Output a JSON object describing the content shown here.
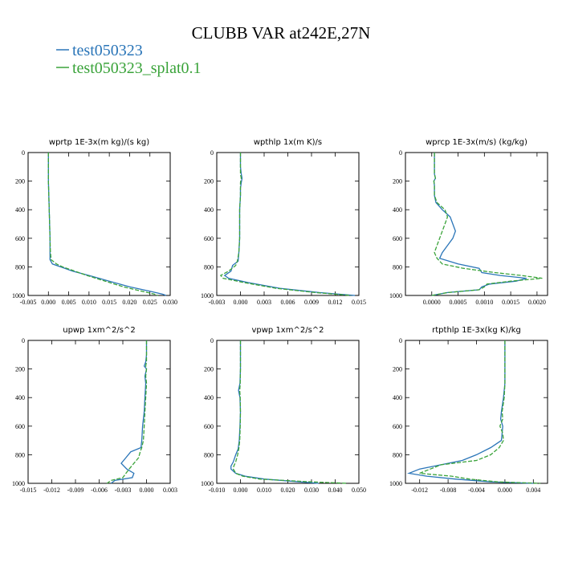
{
  "title": "CLUBB VAR at242E,27N",
  "legend": [
    {
      "label": "test050323",
      "color": "#2a75b8"
    },
    {
      "label": "test050323_splat0.1",
      "color": "#3aa33a"
    }
  ],
  "chart_data": [
    {
      "type": "line",
      "title": "wprtp  1E-3x(m kg)/(s kg)",
      "xlim": [
        -0.005,
        0.03
      ],
      "ylim": [
        1000,
        0
      ],
      "xticks": [
        "-0.005",
        "0.000",
        "0.005",
        "0.010",
        "0.015",
        "0.020",
        "0.025",
        "0.030"
      ],
      "xtick_values": [
        -0.005,
        0.0,
        0.005,
        0.01,
        0.015,
        0.02,
        0.025,
        0.03
      ],
      "yticks": [
        "0",
        "200",
        "400",
        "600",
        "800",
        "1000"
      ],
      "ytick_values": [
        0,
        200,
        400,
        600,
        800,
        1000
      ],
      "y": [
        0,
        100,
        200,
        300,
        400,
        500,
        600,
        700,
        750,
        780,
        800,
        830,
        860,
        900,
        940,
        970,
        990,
        1000
      ],
      "series": [
        {
          "name": "test050323",
          "values": [
            0,
            0,
            0,
            0.0001,
            0.0002,
            0.0003,
            0.0004,
            0.0004,
            0.0004,
            0.001,
            0.003,
            0.006,
            0.01,
            0.015,
            0.02,
            0.025,
            0.028,
            0.029
          ]
        },
        {
          "name": "test050323_splat0.1",
          "values": [
            0,
            0,
            0,
            0.0001,
            0.0002,
            0.0003,
            0.0004,
            0.0005,
            0.0007,
            0.002,
            0.0035,
            0.0065,
            0.0095,
            0.014,
            0.0185,
            0.023,
            0.026,
            0.027
          ]
        }
      ]
    },
    {
      "type": "line",
      "title": "wpthlp  1x(m K)/s",
      "xlim": [
        -0.003,
        0.015
      ],
      "ylim": [
        1000,
        0
      ],
      "xticks": [
        "-0.003",
        "0.000",
        "0.003",
        "0.006",
        "0.009",
        "0.012",
        "0.015"
      ],
      "xtick_values": [
        -0.003,
        0.0,
        0.003,
        0.006,
        0.009,
        0.012,
        0.015
      ],
      "yticks": [
        "0",
        "200",
        "400",
        "600",
        "800",
        "1000"
      ],
      "ytick_values": [
        0,
        200,
        400,
        600,
        800,
        1000
      ],
      "y": [
        0,
        100,
        150,
        180,
        210,
        250,
        300,
        400,
        500,
        600,
        700,
        760,
        790,
        830,
        860,
        880,
        910,
        950,
        980,
        1000
      ],
      "series": [
        {
          "name": "test050323",
          "values": [
            0,
            0,
            0.0001,
            0.0002,
            0.0001,
            0,
            0,
            -0.0001,
            -0.0001,
            -0.0001,
            -0.0002,
            -0.0003,
            -0.001,
            -0.0012,
            -0.002,
            -0.0015,
            0.001,
            0.005,
            0.01,
            0.0145
          ]
        },
        {
          "name": "test050323_splat0.1",
          "values": [
            0,
            0,
            0,
            0.0001,
            0,
            0,
            0,
            -0.0001,
            -0.0001,
            -0.0001,
            -0.0002,
            -0.0004,
            -0.0006,
            -0.0015,
            -0.0025,
            -0.0022,
            0.0005,
            0.0045,
            0.0095,
            0.014
          ]
        }
      ]
    },
    {
      "type": "line",
      "title": "wprcp  1E-3x(m/s) (kg/kg)",
      "xlim": [
        -0.0005,
        0.0022
      ],
      "ylim": [
        1000,
        0
      ],
      "xticks": [
        "0.0000",
        "0.0005",
        "0.0010",
        "0.0015",
        "0.0020"
      ],
      "xtick_values": [
        0.0,
        0.0005,
        0.001,
        0.0015,
        0.002
      ],
      "yticks": [
        "0",
        "200",
        "400",
        "600",
        "800",
        "1000"
      ],
      "ytick_values": [
        0,
        200,
        400,
        600,
        800,
        1000
      ],
      "y": [
        0,
        100,
        150,
        180,
        200,
        230,
        300,
        350,
        400,
        450,
        500,
        550,
        600,
        650,
        700,
        740,
        780,
        810,
        840,
        860,
        880,
        900,
        920,
        940,
        960,
        980,
        1000
      ],
      "series": [
        {
          "name": "test050323",
          "values": [
            5e-05,
            5e-05,
            5e-05,
            7e-05,
            4e-05,
            5e-05,
            5e-05,
            8e-05,
            0.0002,
            0.00035,
            0.0004,
            0.00045,
            0.0004,
            0.0003,
            0.0002,
            0.00015,
            0.0005,
            0.0009,
            0.00095,
            0.0013,
            0.0018,
            0.0016,
            0.0011,
            0.00095,
            0.0009,
            0.0003,
            0.0
          ]
        },
        {
          "name": "test050323_splat0.1",
          "values": [
            5e-05,
            5e-05,
            5e-05,
            7e-05,
            4e-05,
            5e-05,
            5e-05,
            0.0001,
            0.00025,
            0.0003,
            0.00025,
            0.0002,
            0.00015,
            0.0001,
            5e-05,
            0.0001,
            0.0002,
            0.0006,
            0.0012,
            0.0017,
            0.0021,
            0.0015,
            0.00105,
            0.001,
            0.0009,
            0.0003,
            0.0
          ]
        }
      ]
    },
    {
      "type": "line",
      "title": "upwp  1xm^2/s^2",
      "xlim": [
        -0.015,
        0.003
      ],
      "ylim": [
        1000,
        0
      ],
      "xticks": [
        "-0.015",
        "-0.012",
        "-0.009",
        "-0.006",
        "-0.003",
        "0.000",
        "0.003"
      ],
      "xtick_values": [
        -0.015,
        -0.012,
        -0.009,
        -0.006,
        -0.003,
        0.0,
        0.003
      ],
      "yticks": [
        "0",
        "200",
        "400",
        "600",
        "800",
        "1000"
      ],
      "ytick_values": [
        0,
        200,
        400,
        600,
        800,
        1000
      ],
      "y": [
        0,
        100,
        150,
        180,
        200,
        250,
        300,
        400,
        500,
        600,
        700,
        750,
        780,
        820,
        860,
        900,
        930,
        960,
        980,
        1000
      ],
      "series": [
        {
          "name": "test050323",
          "values": [
            0,
            0,
            -0.0001,
            -0.0003,
            0,
            -0.0002,
            -0.0001,
            -0.0002,
            -0.0003,
            -0.0005,
            -0.0006,
            -0.0007,
            -0.002,
            -0.0026,
            -0.0032,
            -0.0025,
            -0.0016,
            -0.0018,
            -0.004,
            -0.0045
          ]
        },
        {
          "name": "test050323_splat0.1",
          "values": [
            0,
            0,
            0,
            -0.0001,
            0,
            -0.0001,
            0,
            -0.0001,
            -0.0002,
            -0.0003,
            -0.0004,
            -0.0006,
            -0.0008,
            -0.001,
            -0.0016,
            -0.0022,
            -0.0026,
            -0.003,
            -0.0045,
            -0.005
          ]
        }
      ]
    },
    {
      "type": "line",
      "title": "vpwp  1xm^2/s^2",
      "xlim": [
        -0.01,
        0.05
      ],
      "ylim": [
        1000,
        0
      ],
      "xticks": [
        "-0.010",
        "0.000",
        "0.010",
        "0.020",
        "0.030",
        "0.040",
        "0.050"
      ],
      "xtick_values": [
        -0.01,
        0.0,
        0.01,
        0.02,
        0.03,
        0.04,
        0.05
      ],
      "yticks": [
        "0",
        "200",
        "400",
        "600",
        "800",
        "1000"
      ],
      "ytick_values": [
        0,
        200,
        400,
        600,
        800,
        1000
      ],
      "y": [
        0,
        100,
        200,
        300,
        350,
        400,
        500,
        600,
        700,
        760,
        800,
        850,
        880,
        900,
        930,
        950,
        970,
        990,
        1000
      ],
      "series": [
        {
          "name": "test050323",
          "values": [
            0,
            0,
            0,
            -0.0002,
            -0.0008,
            -0.0002,
            0,
            -0.0002,
            -0.0005,
            -0.001,
            -0.002,
            -0.003,
            -0.004,
            -0.004,
            -0.002,
            0.002,
            0.01,
            0.025,
            0.033
          ]
        },
        {
          "name": "test050323_splat0.1",
          "values": [
            0,
            0,
            0,
            -0.0001,
            -0.0003,
            -0.0001,
            0,
            -0.0001,
            -0.0003,
            -0.0007,
            -0.0012,
            -0.002,
            -0.0028,
            -0.003,
            -0.002,
            0.001,
            0.008,
            0.03,
            0.045
          ]
        }
      ]
    },
    {
      "type": "line",
      "title": "rtpthlp  1E-3x(kg K)/kg",
      "xlim": [
        -0.014,
        0.006
      ],
      "ylim": [
        1000,
        0
      ],
      "xticks": [
        "-0.012",
        "-0.008",
        "-0.004",
        "0.000",
        "0.004"
      ],
      "xtick_values": [
        -0.012,
        -0.008,
        -0.004,
        0.0,
        0.004
      ],
      "yticks": [
        "0",
        "200",
        "400",
        "600",
        "800",
        "1000"
      ],
      "ytick_values": [
        0,
        200,
        400,
        600,
        800,
        1000
      ],
      "y": [
        0,
        100,
        200,
        300,
        400,
        500,
        550,
        600,
        650,
        700,
        750,
        800,
        840,
        870,
        900,
        930,
        950,
        970,
        990,
        1000
      ],
      "series": [
        {
          "name": "test050323",
          "values": [
            0,
            0,
            0,
            0,
            -0.0002,
            -0.0005,
            -0.0006,
            -0.0003,
            -0.0004,
            -0.0005,
            -0.002,
            -0.004,
            -0.006,
            -0.009,
            -0.012,
            -0.0135,
            -0.011,
            -0.007,
            -0.002,
            0.004
          ]
        },
        {
          "name": "test050323_splat0.1",
          "values": [
            0,
            0,
            0,
            0,
            -0.0001,
            -0.0004,
            -0.0003,
            -0.0007,
            -0.0003,
            -0.0002,
            -0.0008,
            -0.002,
            -0.004,
            -0.009,
            -0.0105,
            -0.012,
            -0.0075,
            -0.005,
            -0.001,
            0.005
          ]
        }
      ]
    }
  ]
}
